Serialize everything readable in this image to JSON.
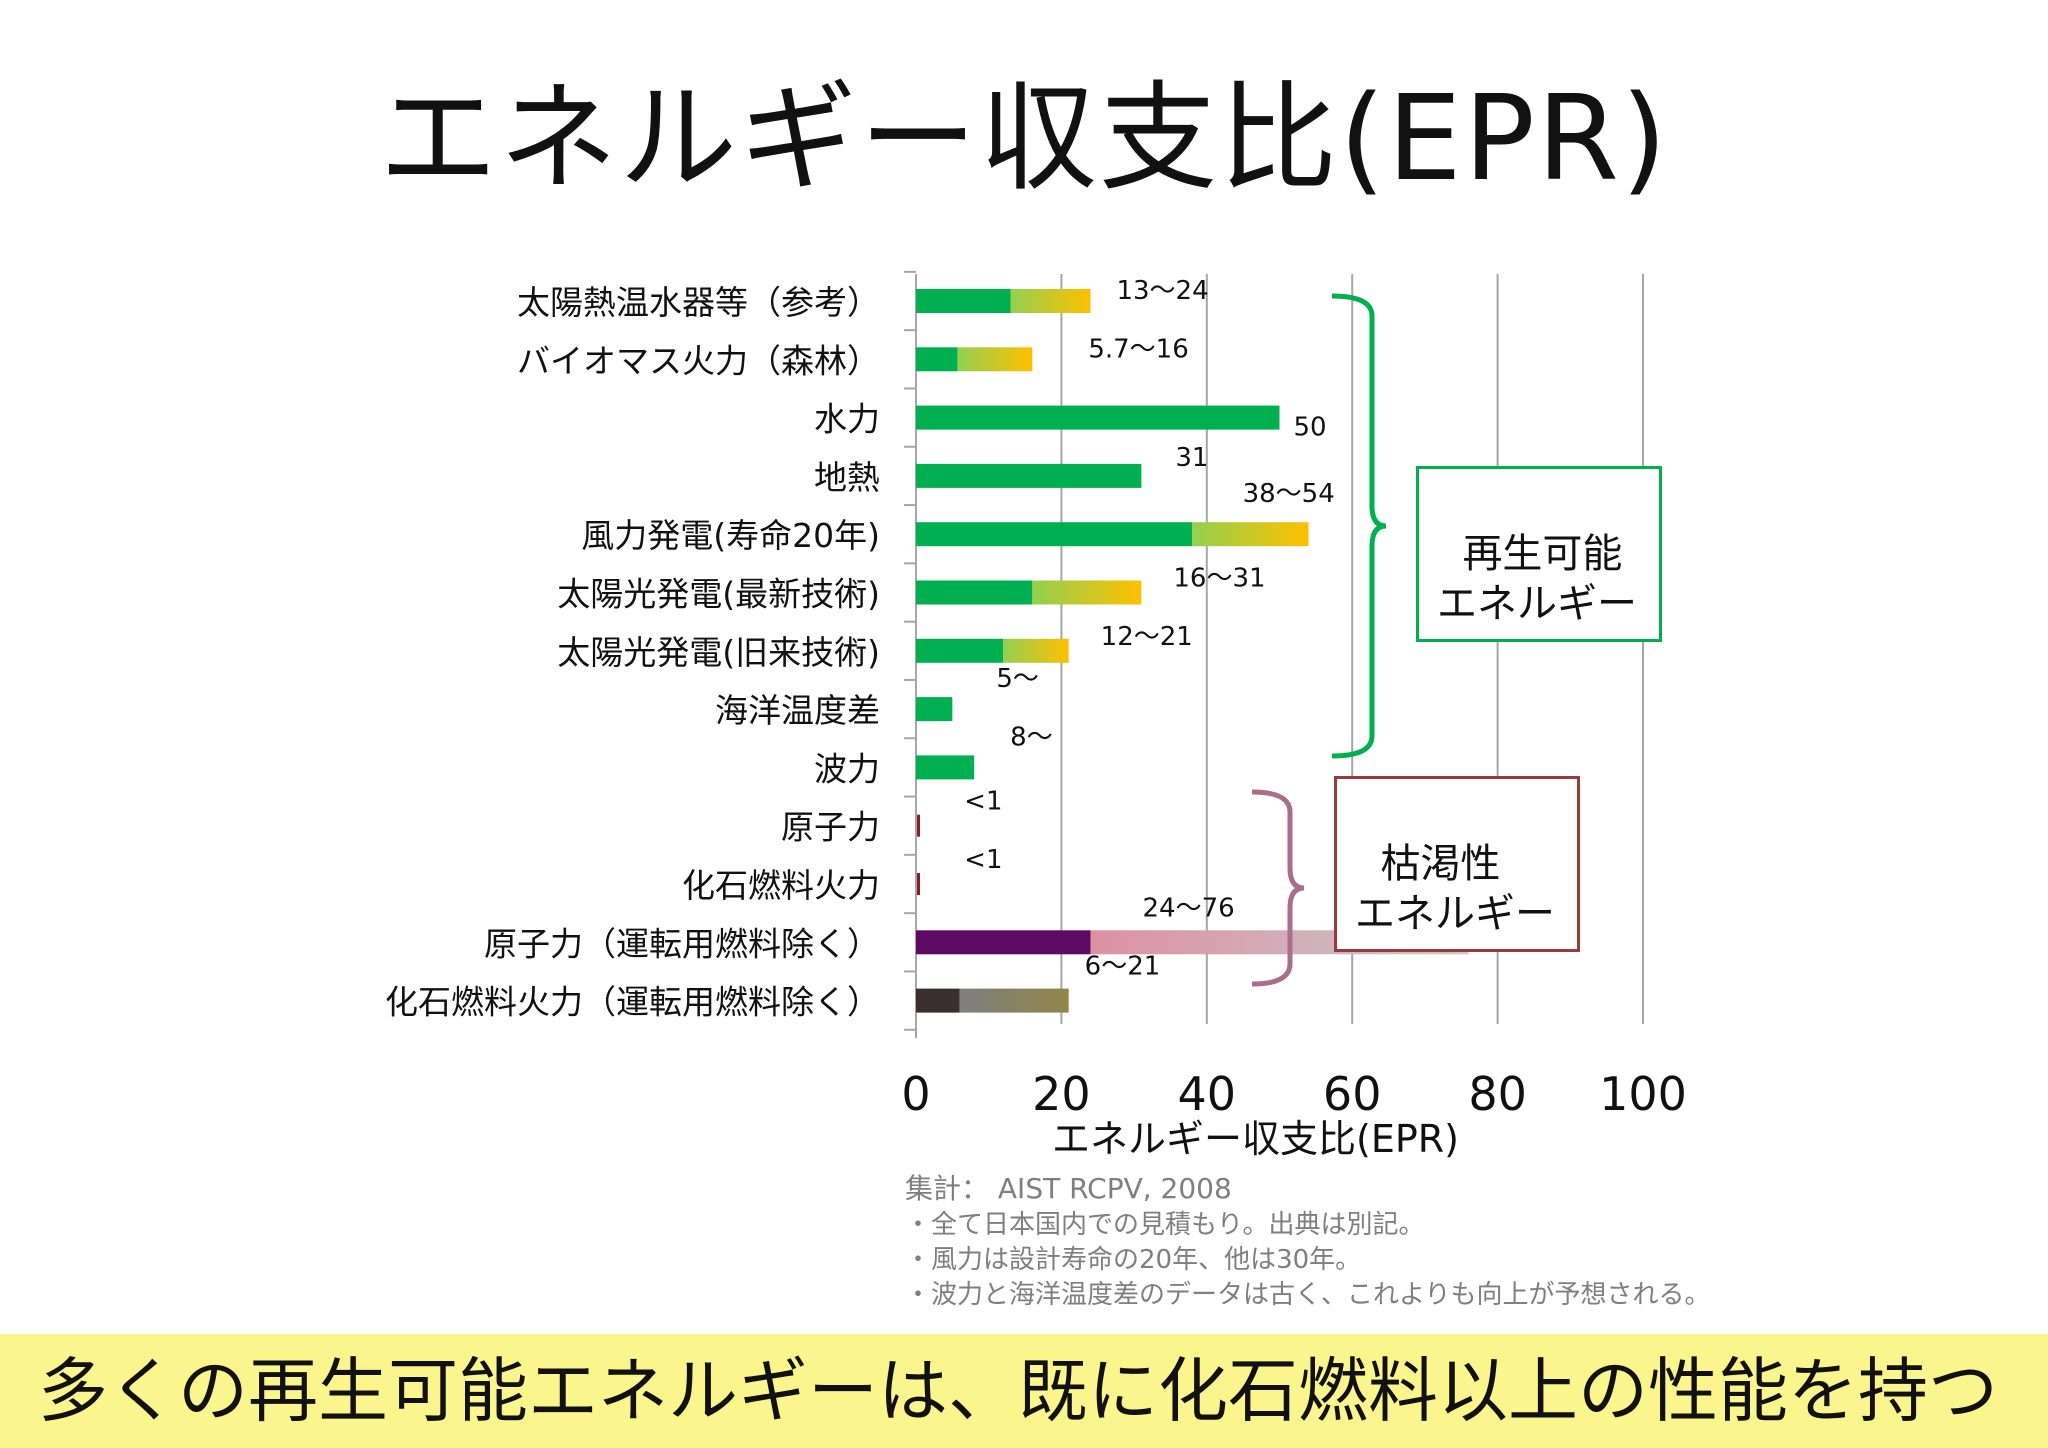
{
  "title": "エネルギー収支比(EPR)",
  "colors": {
    "renewable": "#00b050",
    "renewable_range_mid": "#92d050",
    "renewable_range_end": "#ffc000",
    "nuclear_dark": "#5e0a62",
    "nuclear_range_mid": "#dd90a4",
    "nuclear_range_end": "#c8c8c8",
    "fossil_dark": "#3a2e2e",
    "fossil_range_mid": "#7f7f7f",
    "fossil_range_end": "#908648",
    "grid": "#a6a6a6",
    "renewable_bracket": "#00b050",
    "depletable_bracket": "#a96e8a",
    "depletable_box_border": "#9b3a3a",
    "banner": "#fbf58d",
    "note_text": "#7f7f7f"
  },
  "chart_data": {
    "type": "bar",
    "orientation": "horizontal",
    "categories": [
      "太陽熱温水器等（参考）",
      "バイオマス火力（森林）",
      "水力",
      "地熱",
      "風力発電(寿命20年)",
      "太陽光発電(最新技術)",
      "太陽光発電(旧来技術)",
      "海洋温度差",
      "波力",
      "原子力",
      "化石燃料火力",
      "原子力（運転用燃料除く）",
      "化石燃料火力（運転用燃料除く）"
    ],
    "series": [
      {
        "values": [
          13,
          5.7,
          50,
          31,
          38,
          16,
          12,
          5,
          8,
          0.3,
          0.3,
          24,
          6
        ]
      },
      {
        "values": [
          24,
          16,
          50,
          31,
          54,
          31,
          21,
          5,
          8,
          0.3,
          0.3,
          76,
          21
        ]
      }
    ],
    "data_labels": [
      "13〜24",
      "5.7〜16",
      "50",
      "31",
      "38〜54",
      "16〜31",
      "12〜21",
      "5〜",
      "8〜",
      "<1",
      "<1",
      "24〜76",
      "6〜21"
    ],
    "bar_styles": [
      "renewable",
      "renewable",
      "renewable",
      "renewable",
      "renewable",
      "renewable",
      "renewable",
      "renewable",
      "renewable",
      "small",
      "small",
      "nuclear",
      "fossil"
    ],
    "xlabel": "エネルギー収支比(EPR)",
    "ylabel": "",
    "xlim": [
      0,
      100
    ],
    "xticks": [
      "0",
      "20",
      "40",
      "60",
      "80",
      "100"
    ],
    "grid": true,
    "groups": [
      {
        "label": "再生可能\nエネルギー",
        "from": 0,
        "to": 8,
        "style": "renewable"
      },
      {
        "label": "枯渇性\nエネルギー",
        "from": 9,
        "to": 12,
        "style": "depletable"
      }
    ]
  },
  "source_note": {
    "head": "集計： AIST RCPV, 2008",
    "lines": [
      "・全て日本国内での見積もり。出典は別記。",
      "・風力は設計寿命の20年、他は30年。",
      "・波力と海洋温度差のデータは古く、これよりも向上が予想される。"
    ]
  },
  "conclusion": "多くの再生可能エネルギーは、既に化石燃料以上の性能を持つ"
}
